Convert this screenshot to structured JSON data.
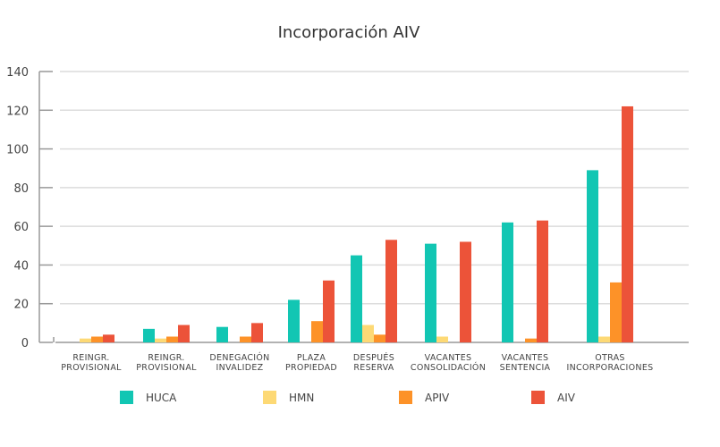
{
  "chart_data": {
    "type": "bar",
    "title": "Incorporación AIV",
    "categories": [
      [
        "REINGR.",
        "PROVISIONAL"
      ],
      [
        "REINGR.",
        "PROVISIONAL"
      ],
      [
        "DENEGACIÓN",
        "INVALIDEZ"
      ],
      [
        "PLAZA",
        "PROPIEDAD"
      ],
      [
        "DESPUÉS",
        "RESERVA"
      ],
      [
        "VACANTES",
        "CONSOLIDACIÓN"
      ],
      [
        "VACANTES",
        "SENTENCIA"
      ],
      [
        "OTRAS",
        "INCORPORACIONES"
      ]
    ],
    "series": [
      {
        "name": "HUCA",
        "color": "#12c6b3",
        "values": [
          0,
          7,
          8,
          22,
          45,
          51,
          62,
          89
        ]
      },
      {
        "name": "HMN",
        "color": "#fdd975",
        "values": [
          2,
          2,
          0,
          0,
          9,
          3,
          0,
          3
        ]
      },
      {
        "name": "APIV",
        "color": "#fd9228",
        "values": [
          3,
          3,
          3,
          11,
          4,
          0,
          2,
          31
        ]
      },
      {
        "name": "AIV",
        "color": "#ec5339",
        "values": [
          4,
          9,
          10,
          32,
          53,
          52,
          63,
          122
        ]
      }
    ],
    "ylim": [
      0,
      140
    ],
    "yticks": [
      0,
      20,
      40,
      60,
      80,
      100,
      120,
      140
    ],
    "grid": true,
    "legend": "bottom"
  }
}
